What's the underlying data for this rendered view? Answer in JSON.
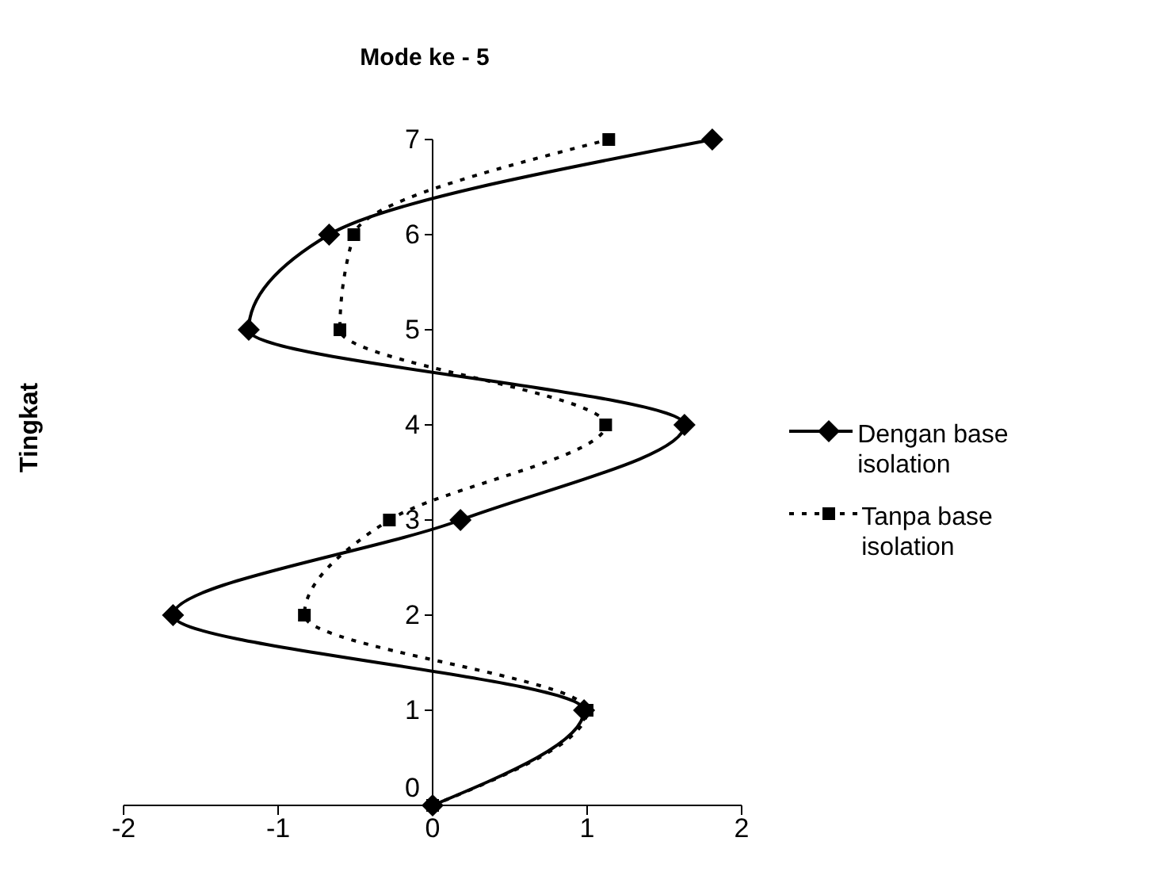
{
  "chart_data": {
    "type": "line",
    "title": "Mode ke - 5",
    "ylabel": "Tingkat",
    "xlim": [
      -2,
      2
    ],
    "xticks": [
      -2,
      -1,
      0,
      1,
      2
    ],
    "ylim": [
      0,
      7
    ],
    "yticks": [
      0,
      1,
      2,
      3,
      4,
      5,
      6,
      7
    ],
    "legend": "right",
    "series": [
      {
        "name": "Dengan base isolation",
        "color": "#000000",
        "marker": "diamond",
        "line_style": "solid",
        "x": [
          0,
          0.98,
          -1.68,
          0.18,
          1.63,
          -1.19,
          -0.67,
          1.81
        ],
        "values": [
          0,
          1,
          2,
          3,
          4,
          5,
          6,
          7
        ]
      },
      {
        "name": "Tanpa base isolation",
        "color": "#000000",
        "marker": "square",
        "line_style": "dotted",
        "x": [
          0,
          1,
          -0.83,
          -0.28,
          1.12,
          -0.6,
          -0.51,
          1.14
        ],
        "values": [
          0,
          1,
          2,
          3,
          4,
          5,
          6,
          7
        ]
      }
    ]
  }
}
